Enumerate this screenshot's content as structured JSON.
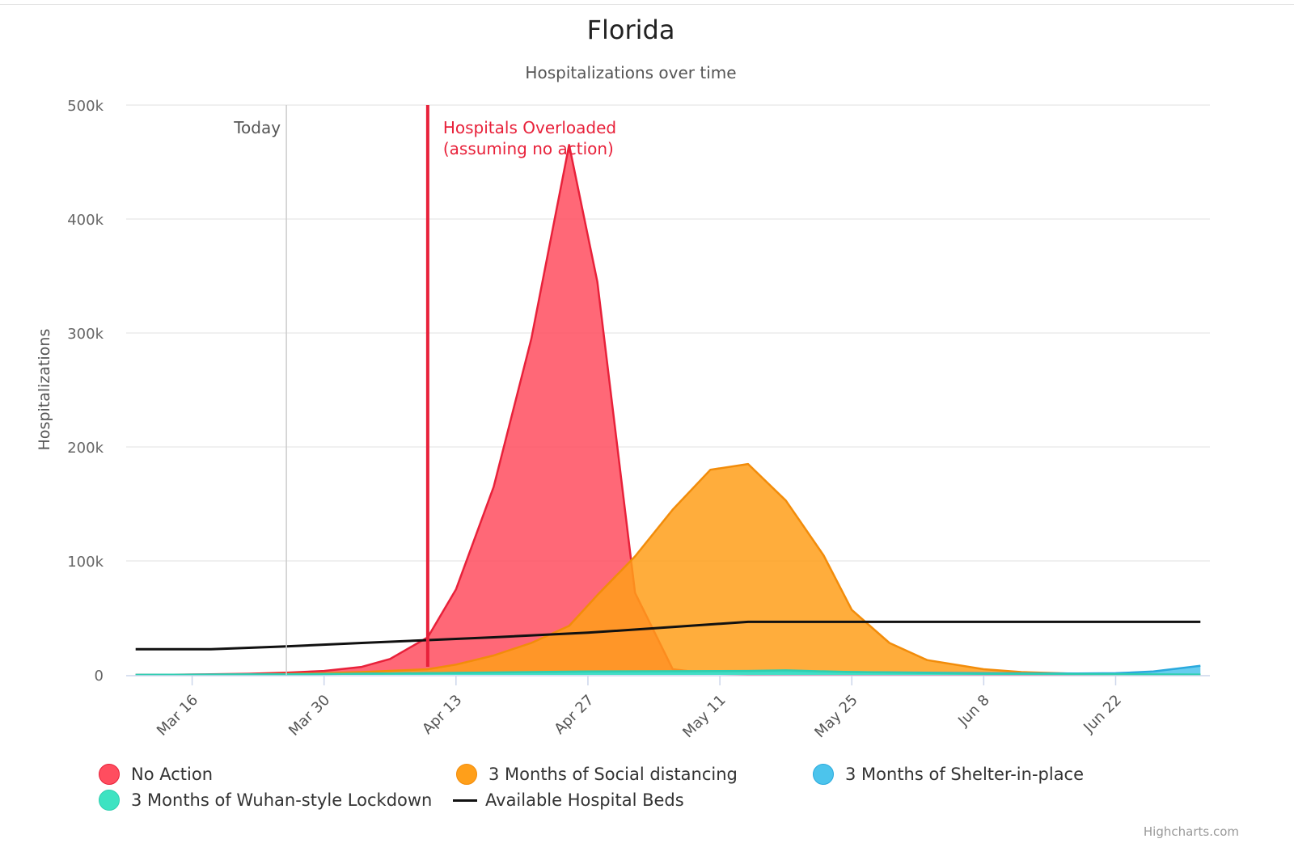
{
  "chart_data": {
    "type": "area",
    "title": "Florida",
    "subtitle": "Hospitalizations over time",
    "ylabel": "Hospitalizations",
    "xlabel": "",
    "ylim": [
      0,
      500000
    ],
    "yticks": [
      0,
      100000,
      200000,
      300000,
      400000,
      500000
    ],
    "ytick_labels": [
      "0",
      "100k",
      "200k",
      "300k",
      "400k",
      "500k"
    ],
    "xlim": [
      "2020-03-09",
      "2020-07-02"
    ],
    "xticks": [
      "2020-03-16",
      "2020-03-30",
      "2020-04-13",
      "2020-04-27",
      "2020-05-11",
      "2020-05-25",
      "2020-06-08",
      "2020-06-22"
    ],
    "xtick_labels": [
      "Mar 16",
      "Mar 30",
      "Apr 13",
      "Apr 27",
      "May 11",
      "May 25",
      "Jun 8",
      "Jun 22"
    ],
    "grid": true,
    "legend_position": "bottom",
    "plot_lines": [
      {
        "label": "Today",
        "date": "2020-03-26",
        "color": "#cccccc"
      },
      {
        "label_lines": [
          "Hospitals Overloaded",
          "(assuming no action)"
        ],
        "date": "2020-04-10",
        "color": "#e8213a"
      }
    ],
    "series": [
      {
        "name": "No Action",
        "type": "area",
        "color": "#ff4d5f",
        "stroke": "#e8213a",
        "points": [
          [
            "2020-03-10",
            0
          ],
          [
            "2020-03-14",
            200
          ],
          [
            "2020-03-18",
            500
          ],
          [
            "2020-03-22",
            1000
          ],
          [
            "2020-03-26",
            2000
          ],
          [
            "2020-03-30",
            3500
          ],
          [
            "2020-04-03",
            7000
          ],
          [
            "2020-04-06",
            14000
          ],
          [
            "2020-04-10",
            33000
          ],
          [
            "2020-04-13",
            75000
          ],
          [
            "2020-04-17",
            165000
          ],
          [
            "2020-04-21",
            295000
          ],
          [
            "2020-04-25",
            465000
          ],
          [
            "2020-04-28",
            345000
          ],
          [
            "2020-05-02",
            72000
          ],
          [
            "2020-05-06",
            5000
          ],
          [
            "2020-05-10",
            1000
          ],
          [
            "2020-05-14",
            500
          ],
          [
            "2020-05-18",
            300
          ],
          [
            "2020-06-01",
            100
          ],
          [
            "2020-07-01",
            0
          ]
        ]
      },
      {
        "name": "3 Months of Social distancing",
        "type": "area",
        "color": "#ff9f1a",
        "stroke": "#f28c0a",
        "points": [
          [
            "2020-03-10",
            0
          ],
          [
            "2020-03-18",
            200
          ],
          [
            "2020-03-26",
            800
          ],
          [
            "2020-03-30",
            1500
          ],
          [
            "2020-04-03",
            2500
          ],
          [
            "2020-04-10",
            5000
          ],
          [
            "2020-04-13",
            9000
          ],
          [
            "2020-04-17",
            17000
          ],
          [
            "2020-04-21",
            28000
          ],
          [
            "2020-04-25",
            43000
          ],
          [
            "2020-04-28",
            70000
          ],
          [
            "2020-05-02",
            104000
          ],
          [
            "2020-05-06",
            145000
          ],
          [
            "2020-05-10",
            180000
          ],
          [
            "2020-05-14",
            185000
          ],
          [
            "2020-05-18",
            153000
          ],
          [
            "2020-05-22",
            105000
          ],
          [
            "2020-05-25",
            57000
          ],
          [
            "2020-05-29",
            28000
          ],
          [
            "2020-06-02",
            13000
          ],
          [
            "2020-06-08",
            5000
          ],
          [
            "2020-06-12",
            2500
          ],
          [
            "2020-06-18",
            1000
          ],
          [
            "2020-06-22",
            500
          ],
          [
            "2020-07-01",
            200
          ]
        ]
      },
      {
        "name": "3 Months of Shelter-in-place",
        "type": "area",
        "color": "#4cc4ec",
        "stroke": "#2aa9dd",
        "points": [
          [
            "2020-03-10",
            0
          ],
          [
            "2020-03-26",
            500
          ],
          [
            "2020-04-10",
            1500
          ],
          [
            "2020-04-27",
            2500
          ],
          [
            "2020-05-14",
            3000
          ],
          [
            "2020-05-25",
            2500
          ],
          [
            "2020-06-08",
            1500
          ],
          [
            "2020-06-18",
            1200
          ],
          [
            "2020-06-22",
            1500
          ],
          [
            "2020-06-26",
            3000
          ],
          [
            "2020-07-01",
            8000
          ]
        ]
      },
      {
        "name": "3 Months of Wuhan-style Lockdown",
        "type": "area",
        "color": "#3de3c2",
        "stroke": "#2fcfb0",
        "points": [
          [
            "2020-03-10",
            0
          ],
          [
            "2020-03-26",
            500
          ],
          [
            "2020-04-10",
            1500
          ],
          [
            "2020-04-27",
            3000
          ],
          [
            "2020-05-14",
            3500
          ],
          [
            "2020-05-18",
            4000
          ],
          [
            "2020-05-25",
            2500
          ],
          [
            "2020-06-08",
            1000
          ],
          [
            "2020-07-01",
            300
          ]
        ]
      },
      {
        "name": "Available Hospital Beds",
        "type": "line",
        "color": "#111111",
        "points": [
          [
            "2020-03-10",
            22500
          ],
          [
            "2020-03-18",
            22500
          ],
          [
            "2020-03-26",
            25000
          ],
          [
            "2020-04-03",
            28000
          ],
          [
            "2020-04-10",
            30500
          ],
          [
            "2020-04-17",
            33000
          ],
          [
            "2020-04-27",
            37000
          ],
          [
            "2020-05-06",
            42000
          ],
          [
            "2020-05-14",
            46500
          ],
          [
            "2020-05-25",
            46500
          ],
          [
            "2020-06-08",
            46500
          ],
          [
            "2020-07-01",
            46500
          ]
        ]
      }
    ],
    "credits": "Highcharts.com"
  }
}
